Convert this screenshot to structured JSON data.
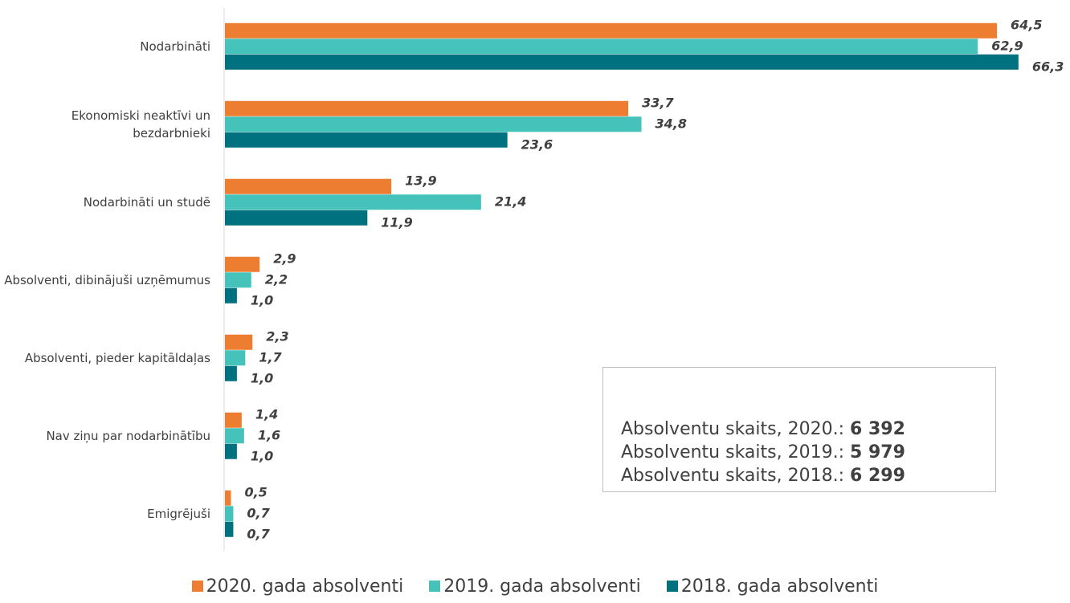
{
  "chart_data": {
    "type": "hbar",
    "categories": [
      "Nodarbināti",
      "Ekonomiski neaktīvi un bezdarbnieki",
      "Nodarbināti un studē",
      "Absolventi, dibinājuši uzņēmumus",
      "Absolventi, pieder kapitāldaļas",
      "Nav ziņu par nodarbinātību",
      "Emigrējuši"
    ],
    "series": [
      {
        "name": "2020. gada absolventi",
        "color": "#ed7d31",
        "values": [
          64.5,
          33.7,
          13.9,
          2.9,
          2.3,
          1.4,
          0.5
        ],
        "value_labels": [
          "64,5",
          "33,7",
          "13,9",
          "2,9",
          "2,3",
          "1,4",
          "0,5"
        ]
      },
      {
        "name": "2019. gada absolventi",
        "color": "#45c3bb",
        "values": [
          62.9,
          34.8,
          21.4,
          2.2,
          1.7,
          1.6,
          0.7
        ],
        "value_labels": [
          "62,9",
          "34,8",
          "21,4",
          "2,2",
          "1,7",
          "1,6",
          "0,7"
        ]
      },
      {
        "name": "2018. gada absolventi",
        "color": "#00717f",
        "values": [
          66.3,
          23.6,
          11.9,
          1.0,
          1.0,
          1.0,
          0.7
        ],
        "value_labels": [
          "66,3",
          "23,6",
          "11,9",
          "1,0",
          "1,0",
          "1,0",
          "0,7"
        ]
      }
    ],
    "legend": "bottom",
    "annotations": [
      {
        "label": "Absolventu skaits, 2020.:",
        "value": "6 392"
      },
      {
        "label": "Absolventu skaits, 2019.:",
        "value": "5 979"
      },
      {
        "label": "Absolventu skaits, 2018.:",
        "value": "6 299"
      }
    ]
  }
}
